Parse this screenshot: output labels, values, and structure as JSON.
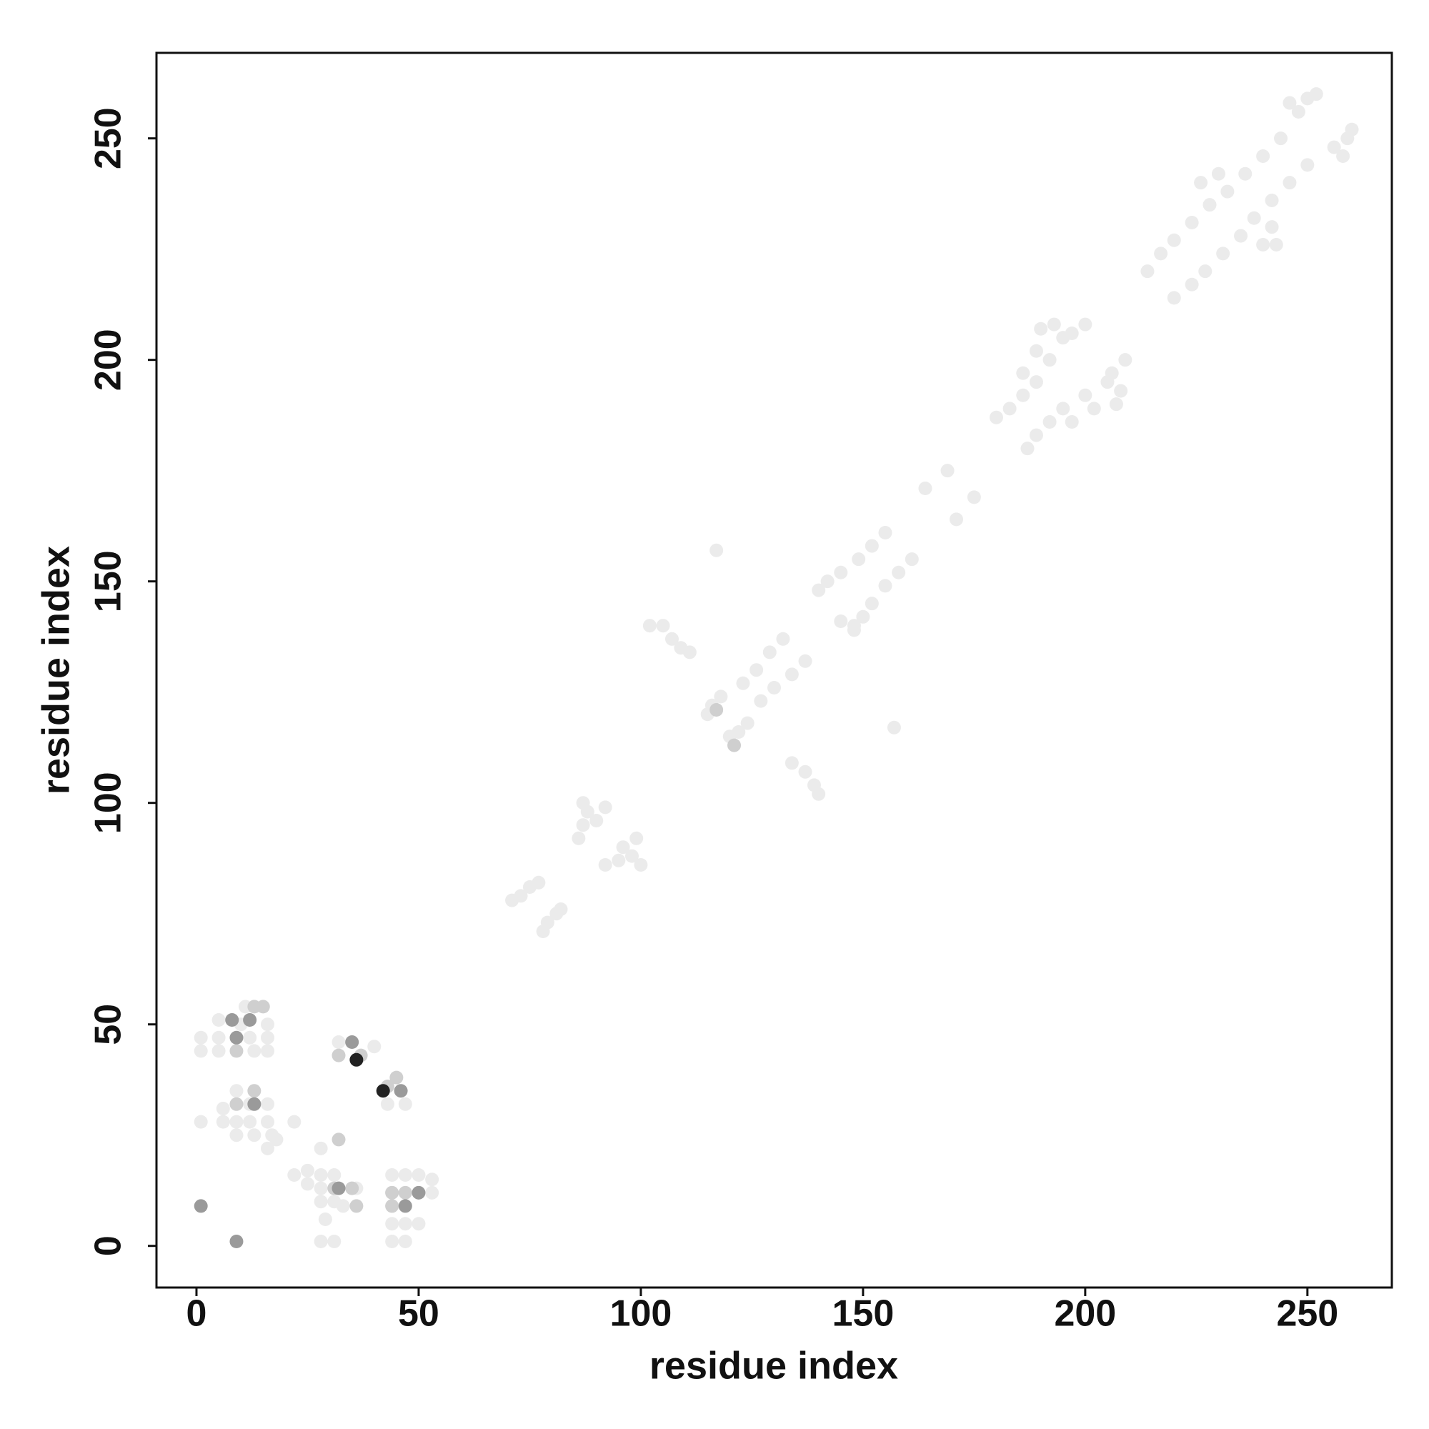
{
  "chart_data": {
    "type": "scatter",
    "xlabel": "residue index",
    "ylabel": "residue index",
    "xlim": [
      -9,
      269
    ],
    "ylim": [
      -9.4,
      269.3
    ],
    "xticks": [
      0,
      50,
      100,
      150,
      200,
      250
    ],
    "yticks": [
      0,
      50,
      100,
      150,
      200,
      250
    ],
    "grid": false,
    "series": [
      {
        "color": "#ebebeb",
        "x": [
          1,
          5,
          5,
          5,
          12,
          16,
          16,
          16,
          13,
          11,
          10,
          1,
          1,
          6,
          6,
          9,
          9,
          9,
          12,
          12,
          16,
          16,
          17,
          16,
          18,
          13,
          22,
          22,
          25,
          25,
          28,
          28,
          28,
          31,
          31,
          29,
          28,
          31,
          33,
          36,
          28,
          44,
          47,
          50,
          53,
          44,
          53,
          44,
          44,
          47,
          50,
          44,
          47,
          32,
          40,
          43,
          47,
          71,
          73,
          75,
          77,
          78,
          79,
          81,
          82,
          86,
          87,
          88,
          90,
          92,
          87,
          92,
          95,
          98,
          96,
          99,
          100,
          102,
          105,
          107,
          109,
          111,
          115,
          116,
          118,
          120,
          122,
          124,
          117,
          157,
          123,
          126,
          129,
          132,
          127,
          130,
          134,
          137,
          134,
          137,
          139,
          140,
          140,
          142,
          145,
          149,
          152,
          155,
          148,
          150,
          152,
          155,
          158,
          161,
          145,
          148,
          164,
          169,
          171,
          175,
          180,
          183,
          186,
          189,
          192,
          195,
          190,
          193,
          197,
          200,
          186,
          189,
          187,
          189,
          192,
          195,
          200,
          205,
          207,
          208,
          206,
          209,
          197,
          202,
          214,
          217,
          220,
          224,
          228,
          232,
          236,
          240,
          244,
          248,
          252,
          226,
          230,
          246,
          250,
          220,
          224,
          227,
          231,
          235,
          238,
          242,
          246,
          250,
          256,
          260,
          240,
          242,
          258,
          259,
          243
        ],
        "y": [
          44,
          44,
          47,
          51,
          47,
          50,
          47,
          44,
          44,
          54,
          50,
          47,
          28,
          28,
          31,
          25,
          28,
          35,
          28,
          32,
          28,
          32,
          25,
          22,
          24,
          25,
          16,
          28,
          14,
          17,
          13,
          16,
          10,
          10,
          16,
          6,
          1,
          1,
          9,
          13,
          22,
          16,
          16,
          16,
          15,
          12,
          12,
          9,
          5,
          5,
          5,
          1,
          1,
          46,
          45,
          32,
          32,
          78,
          79,
          81,
          82,
          71,
          73,
          75,
          76,
          92,
          95,
          98,
          96,
          99,
          100,
          86,
          87,
          88,
          90,
          92,
          86,
          140,
          140,
          137,
          135,
          134,
          120,
          122,
          124,
          115,
          116,
          118,
          157,
          117,
          127,
          130,
          134,
          137,
          123,
          126,
          129,
          132,
          109,
          107,
          104,
          102,
          148,
          150,
          152,
          155,
          158,
          161,
          140,
          142,
          145,
          149,
          152,
          155,
          141,
          139,
          171,
          175,
          164,
          169,
          187,
          189,
          192,
          195,
          200,
          205,
          207,
          208,
          206,
          208,
          197,
          202,
          180,
          183,
          186,
          189,
          192,
          195,
          190,
          193,
          197,
          200,
          186,
          189,
          220,
          224,
          227,
          231,
          235,
          238,
          242,
          246,
          250,
          256,
          260,
          240,
          242,
          258,
          259,
          214,
          217,
          220,
          224,
          228,
          232,
          236,
          240,
          244,
          248,
          252,
          226,
          230,
          246,
          250,
          226
        ]
      },
      {
        "color": "#cfcfcf",
        "x": [
          9,
          13,
          15,
          9,
          13,
          36,
          32,
          31,
          35,
          44,
          47,
          44,
          32,
          37,
          43,
          45,
          117,
          121
        ],
        "y": [
          44,
          54,
          54,
          32,
          35,
          9,
          24,
          13,
          13,
          12,
          12,
          9,
          43,
          43,
          36,
          38,
          121,
          113
        ]
      },
      {
        "color": "#9a9a9a",
        "x": [
          1,
          9,
          9,
          12,
          8,
          13,
          32,
          50,
          47,
          35,
          46
        ],
        "y": [
          9,
          1,
          47,
          51,
          51,
          32,
          13,
          12,
          9,
          46,
          35
        ]
      },
      {
        "color": "#222222",
        "x": [
          36,
          42
        ],
        "y": [
          42,
          35
        ]
      }
    ]
  }
}
